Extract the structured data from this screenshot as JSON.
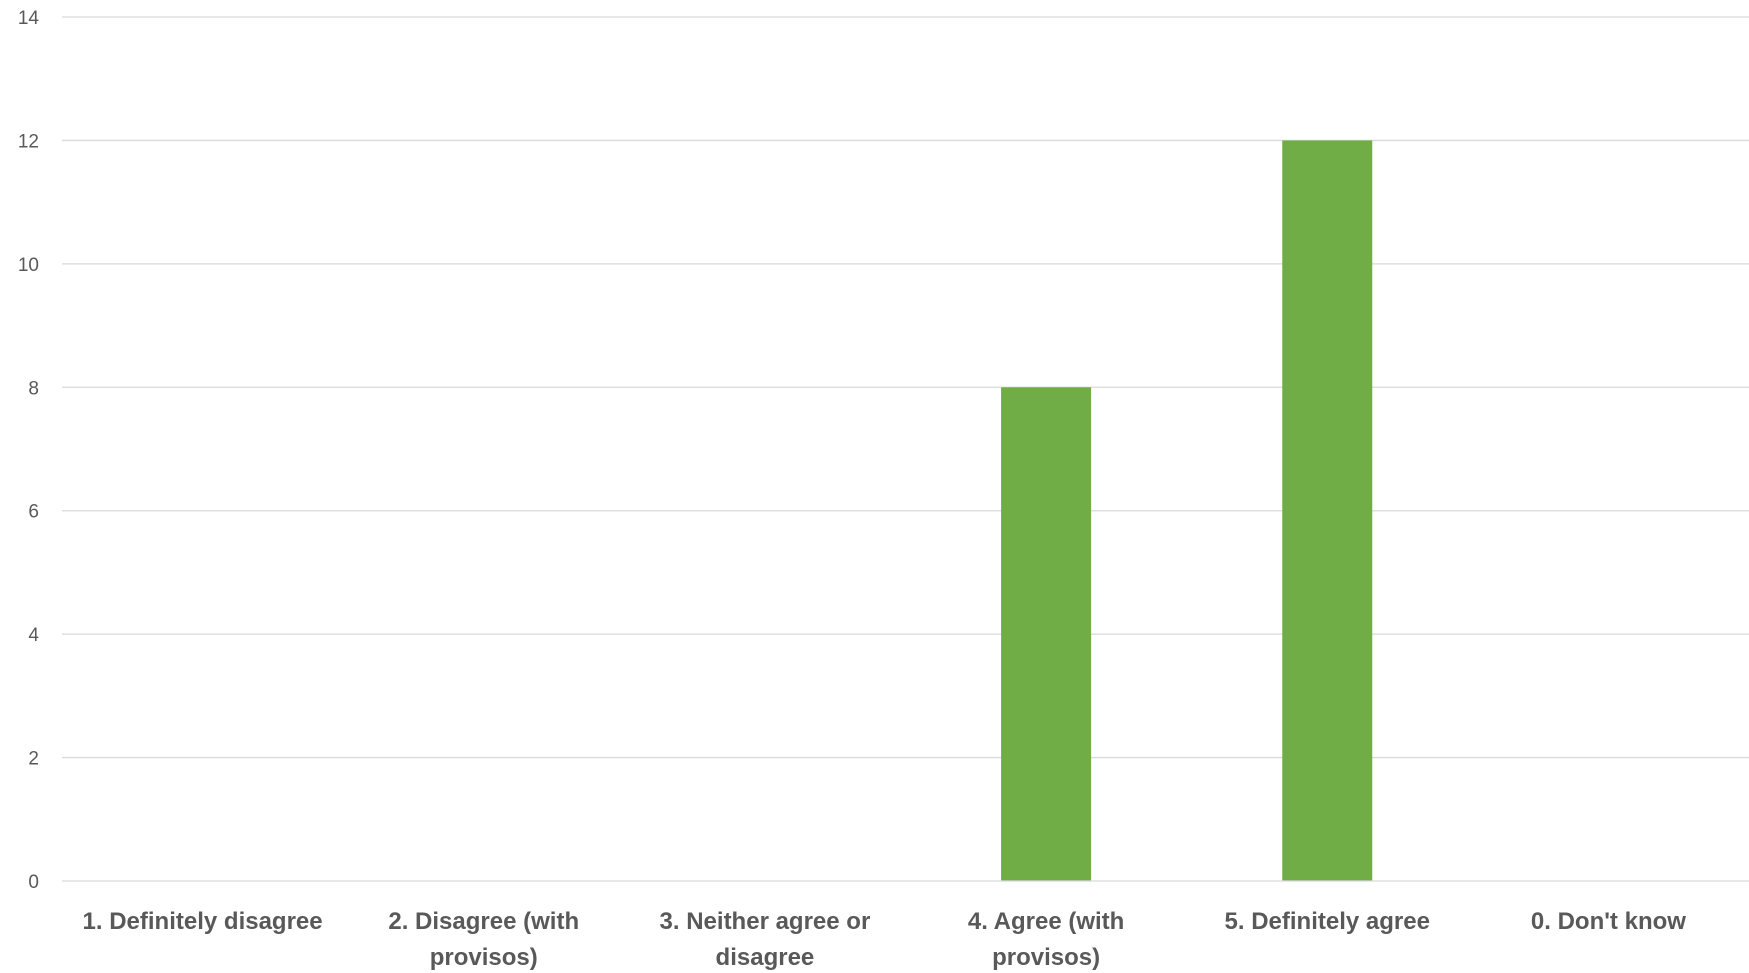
{
  "chart_data": {
    "type": "bar",
    "title": "",
    "xlabel": "",
    "ylabel": "",
    "categories": [
      "1. Definitely disagree",
      "2. Disagree (with provisos)",
      "3. Neither agree or disagree",
      "4. Agree (with provisos)",
      "5. Definitely agree",
      "0. Don't know"
    ],
    "category_label_lines": [
      [
        "1. Definitely disagree"
      ],
      [
        "2. Disagree (with",
        "provisos)"
      ],
      [
        "3. Neither agree or",
        "disagree"
      ],
      [
        "4. Agree (with",
        "provisos)"
      ],
      [
        "5. Definitely agree"
      ],
      [
        "0. Don't know"
      ]
    ],
    "values": [
      0,
      0,
      0,
      8,
      12,
      0
    ],
    "ylim": [
      0,
      14
    ],
    "yticks": [
      "0",
      "2",
      "4",
      "6",
      "8",
      "10",
      "12",
      "14"
    ],
    "grid": true,
    "legend": "none",
    "bar_color": "#70ad47"
  }
}
